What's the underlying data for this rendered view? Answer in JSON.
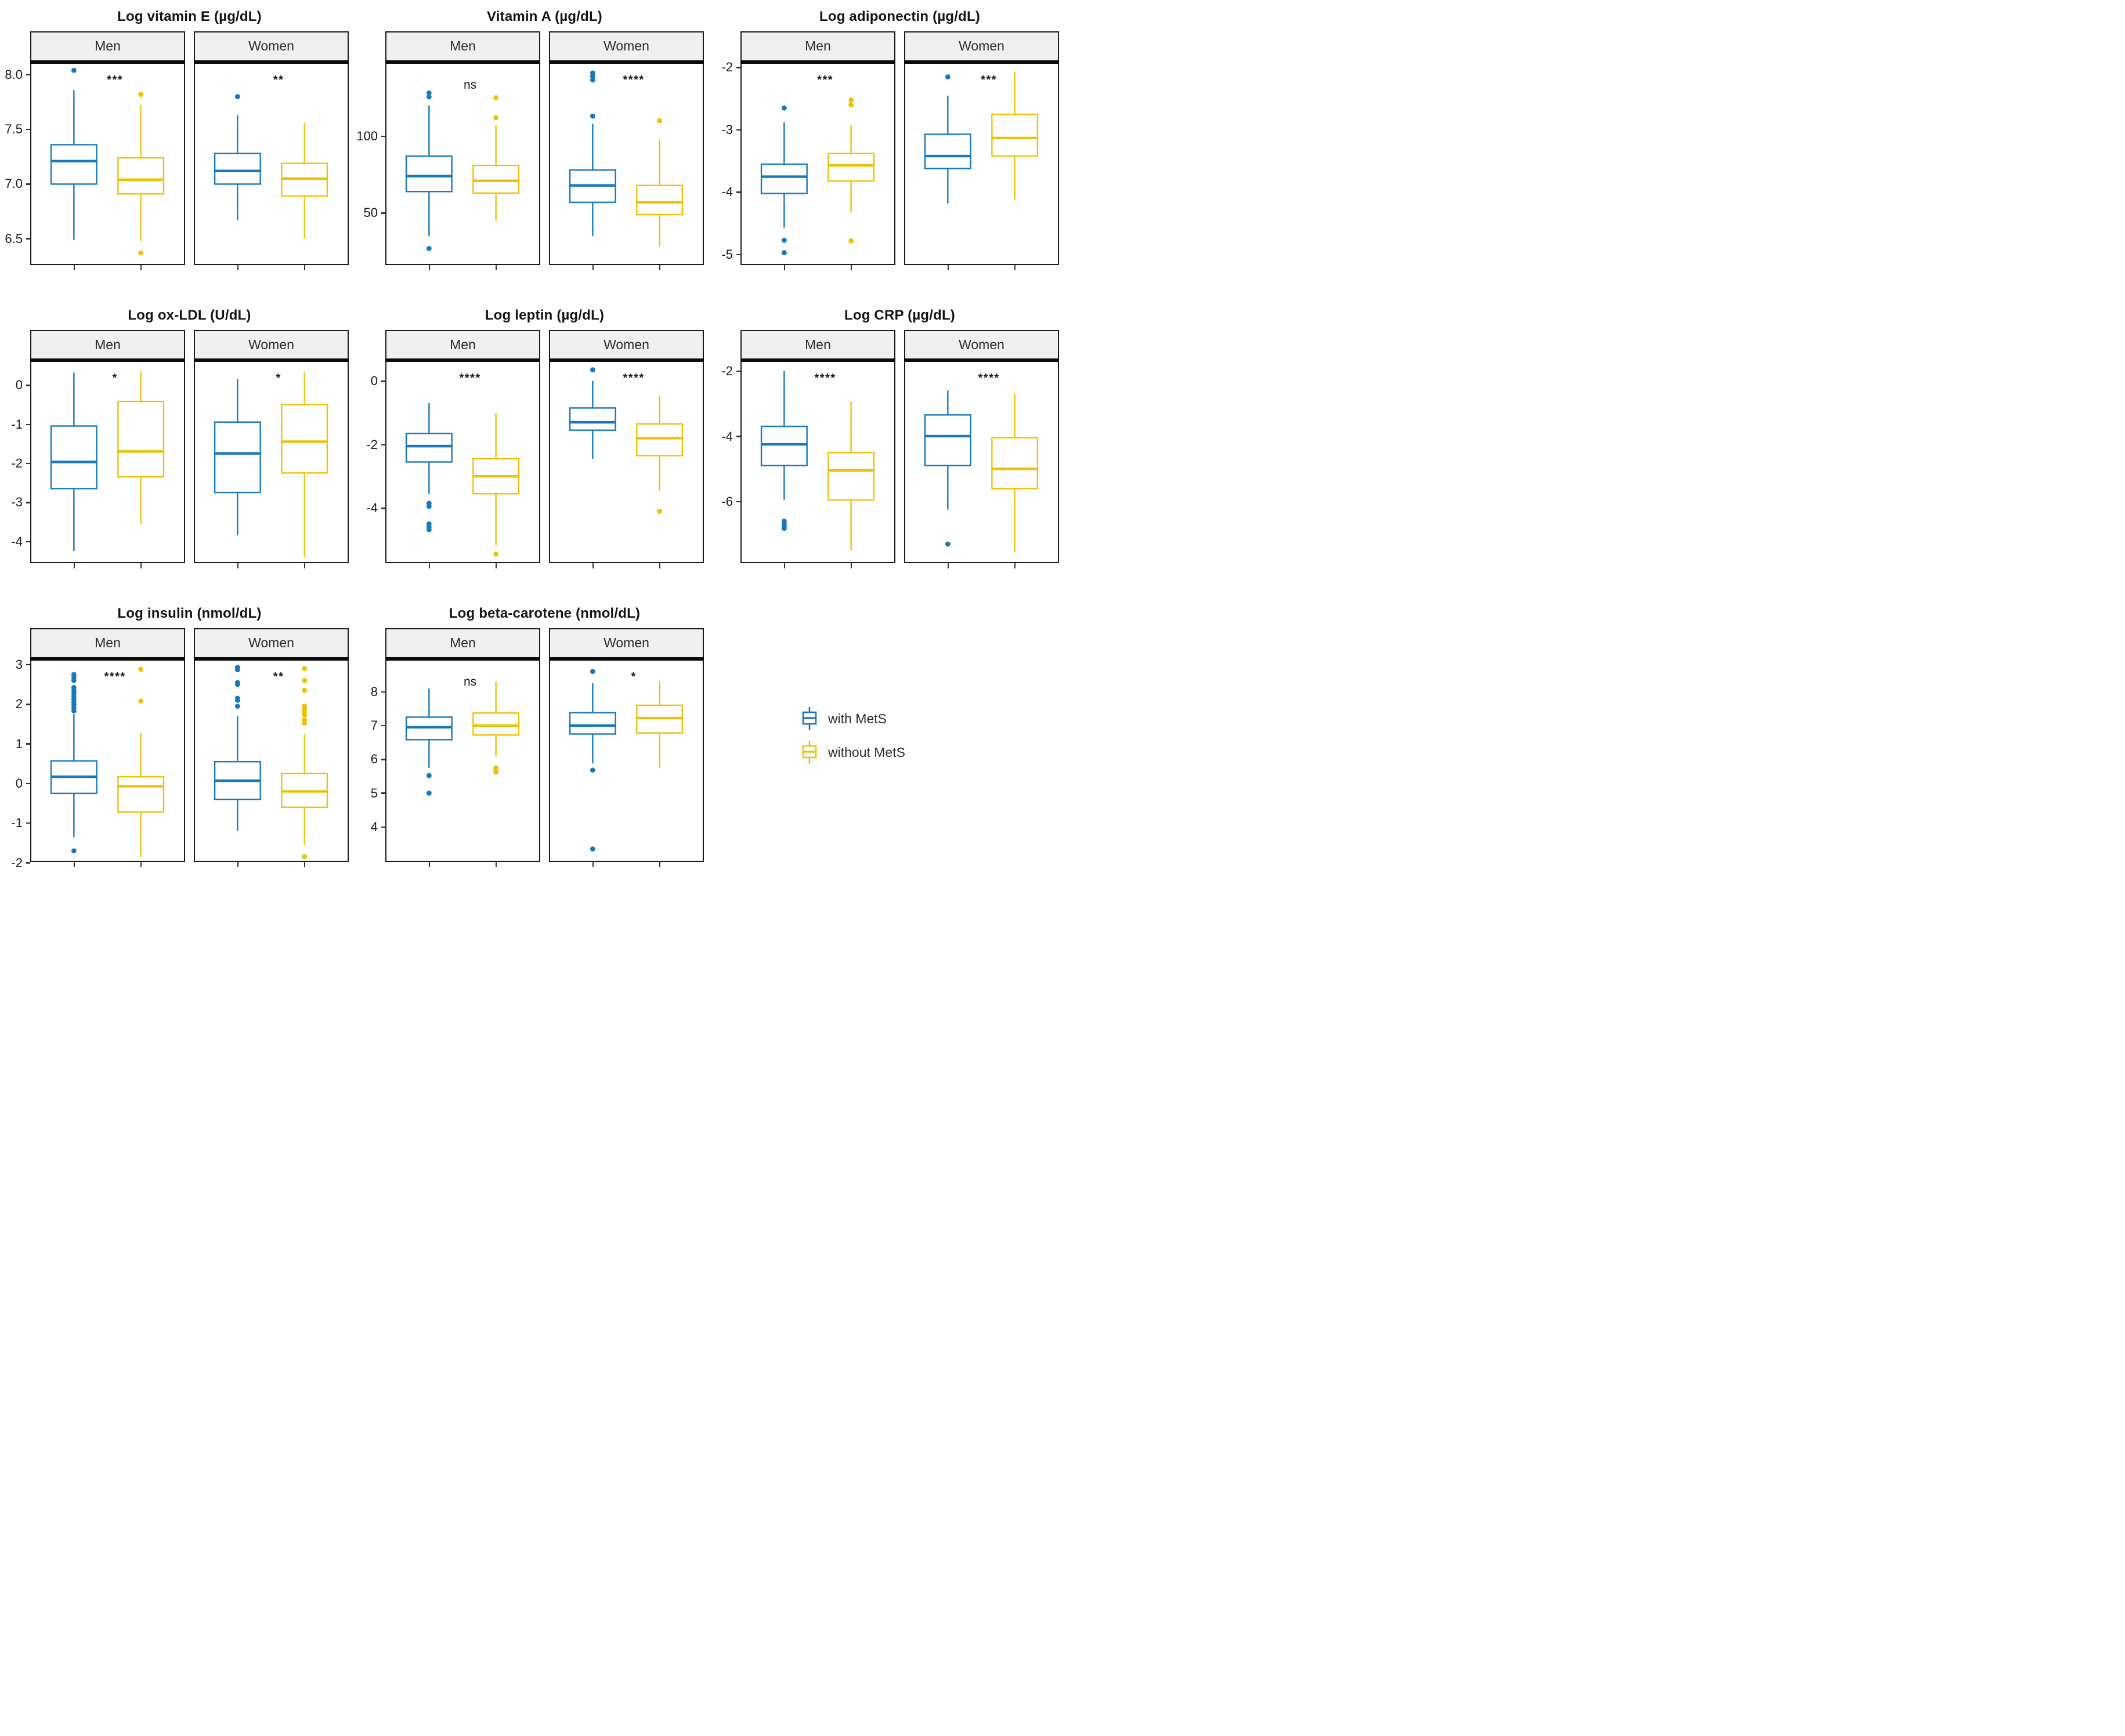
{
  "figure": {
    "background": "#ffffff",
    "facet_strip_bg": "#f0f0f0",
    "panel_border": "#1a1a1a",
    "axis_text_color": "#1a1a1a"
  },
  "colors": {
    "with_mets": "#1878BE",
    "without_mets": "#EFC106"
  },
  "legend": {
    "items": [
      {
        "label": "with MetS",
        "color": "#1878BE"
      },
      {
        "label": "without MetS",
        "color": "#EFC106"
      }
    ]
  },
  "chart_data": [
    {
      "type": "boxplot",
      "title": "Log vitamin E (µg/dL)",
      "ylabel": "",
      "ylim": [
        6.27,
        8.1
      ],
      "yticks": [
        6.5,
        7.0,
        7.5,
        8.0
      ],
      "ytick_labels": [
        "6.5",
        "7.0",
        "7.5",
        "8.0"
      ],
      "facets": [
        {
          "label": "Men",
          "significance": "***",
          "boxes": [
            {
              "series": "with MetS",
              "low": 6.49,
              "q1": 7.0,
              "median": 7.21,
              "q3": 7.36,
              "high": 7.86,
              "outliers": [
                8.04
              ]
            },
            {
              "series": "without MetS",
              "low": 6.48,
              "q1": 6.91,
              "median": 7.04,
              "q3": 7.24,
              "high": 7.72,
              "outliers": [
                7.82,
                6.37
              ]
            }
          ]
        },
        {
          "label": "Women",
          "significance": "**",
          "boxes": [
            {
              "series": "with MetS",
              "low": 6.67,
              "q1": 7.0,
              "median": 7.12,
              "q3": 7.28,
              "high": 7.63,
              "outliers": [
                7.8
              ]
            },
            {
              "series": "without MetS",
              "low": 6.5,
              "q1": 6.89,
              "median": 7.05,
              "q3": 7.19,
              "high": 7.56,
              "outliers": []
            }
          ]
        }
      ]
    },
    {
      "type": "boxplot",
      "title": "Vitamin A (µg/dL)",
      "ylabel": "",
      "ylim": [
        17,
        147
      ],
      "yticks": [
        50,
        100
      ],
      "ytick_labels": [
        "50",
        "100"
      ],
      "facets": [
        {
          "label": "Men",
          "significance": "ns",
          "boxes": [
            {
              "series": "with MetS",
              "low": 35,
              "q1": 64,
              "median": 74,
              "q3": 87,
              "high": 120,
              "outliers": [
                128,
                125.5,
                27
              ]
            },
            {
              "series": "without MetS",
              "low": 45,
              "q1": 63,
              "median": 71,
              "q3": 81,
              "high": 107,
              "outliers": [
                125,
                112
              ]
            }
          ]
        },
        {
          "label": "Women",
          "significance": "****",
          "boxes": [
            {
              "series": "with MetS",
              "low": 35,
              "q1": 57,
              "median": 68,
              "q3": 78,
              "high": 108,
              "outliers": [
                141,
                139,
                136.5,
                113
              ]
            },
            {
              "series": "without MetS",
              "low": 28,
              "q1": 49,
              "median": 57,
              "q3": 68,
              "high": 98,
              "outliers": [
                110
              ]
            }
          ]
        }
      ]
    },
    {
      "type": "boxplot",
      "title": "Log adiponectin (µg/dL)",
      "ylabel": "",
      "ylim": [
        -5.15,
        -1.94
      ],
      "yticks": [
        -5,
        -4,
        -3,
        -2
      ],
      "ytick_labels": [
        "-5",
        "-4",
        "-3",
        "-2"
      ],
      "facets": [
        {
          "label": "Men",
          "significance": "***",
          "boxes": [
            {
              "series": "with MetS",
              "low": -4.57,
              "q1": -4.02,
              "median": -3.75,
              "q3": -3.55,
              "high": -2.88,
              "outliers": [
                -2.65,
                -4.77,
                -4.97
              ]
            },
            {
              "series": "without MetS",
              "low": -4.33,
              "q1": -3.82,
              "median": -3.57,
              "q3": -3.38,
              "high": -2.92,
              "outliers": [
                -2.52,
                -2.6,
                -4.78
              ]
            }
          ]
        },
        {
          "label": "Women",
          "significance": "***",
          "boxes": [
            {
              "series": "with MetS",
              "low": -4.18,
              "q1": -3.62,
              "median": -3.42,
              "q3": -3.07,
              "high": -2.45,
              "outliers": [
                -2.15
              ]
            },
            {
              "series": "without MetS",
              "low": -4.12,
              "q1": -3.42,
              "median": -3.13,
              "q3": -2.75,
              "high": -2.07,
              "outliers": []
            }
          ]
        }
      ]
    },
    {
      "type": "boxplot",
      "title": "Log ox-LDL (U/dL)",
      "ylabel": "",
      "ylim": [
        -4.53,
        0.59
      ],
      "yticks": [
        -4,
        -3,
        -2,
        -1,
        0
      ],
      "ytick_labels": [
        "-4",
        "-3",
        "-2",
        "-1",
        "0"
      ],
      "facets": [
        {
          "label": "Men",
          "significance": "*",
          "boxes": [
            {
              "series": "with MetS",
              "low": -4.25,
              "q1": -2.65,
              "median": -1.97,
              "q3": -1.05,
              "high": 0.32,
              "outliers": []
            },
            {
              "series": "without MetS",
              "low": -3.55,
              "q1": -2.35,
              "median": -1.7,
              "q3": -0.42,
              "high": 0.35,
              "outliers": []
            }
          ]
        },
        {
          "label": "Women",
          "significance": "*",
          "boxes": [
            {
              "series": "with MetS",
              "low": -3.85,
              "q1": -2.75,
              "median": -1.75,
              "q3": -0.95,
              "high": 0.15,
              "outliers": []
            },
            {
              "series": "without MetS",
              "low": -4.4,
              "q1": -2.25,
              "median": -1.45,
              "q3": -0.5,
              "high": 0.32,
              "outliers": []
            }
          ]
        }
      ]
    },
    {
      "type": "boxplot",
      "title": "Log leptin (µg/dL)",
      "ylabel": "",
      "ylim": [
        -5.7,
        0.6
      ],
      "yticks": [
        -4,
        -2,
        0
      ],
      "ytick_labels": [
        "-4",
        "-2",
        "0"
      ],
      "facets": [
        {
          "label": "Men",
          "significance": "****",
          "boxes": [
            {
              "series": "with MetS",
              "low": -3.55,
              "q1": -2.55,
              "median": -2.05,
              "q3": -1.65,
              "high": -0.7,
              "outliers": [
                -3.85,
                -3.95,
                -4.5,
                -4.6,
                -4.68
              ]
            },
            {
              "series": "without MetS",
              "low": -5.18,
              "q1": -3.55,
              "median": -3.0,
              "q3": -2.45,
              "high": -1.0,
              "outliers": [
                -5.45
              ]
            }
          ]
        },
        {
          "label": "Women",
          "significance": "****",
          "boxes": [
            {
              "series": "with MetS",
              "low": -2.45,
              "q1": -1.55,
              "median": -1.3,
              "q3": -0.85,
              "high": 0.0,
              "outliers": [
                0.35
              ]
            },
            {
              "series": "without MetS",
              "low": -3.45,
              "q1": -2.35,
              "median": -1.8,
              "q3": -1.35,
              "high": -0.45,
              "outliers": [
                -4.1
              ]
            }
          ]
        }
      ]
    },
    {
      "type": "boxplot",
      "title": "Log CRP (µg/dL)",
      "ylabel": "",
      "ylim": [
        -7.85,
        -1.73
      ],
      "yticks": [
        -6,
        -4,
        -2
      ],
      "ytick_labels": [
        "-6",
        "-4",
        "-2"
      ],
      "facets": [
        {
          "label": "Men",
          "significance": "****",
          "boxes": [
            {
              "series": "with MetS",
              "low": -5.95,
              "q1": -4.9,
              "median": -4.25,
              "q3": -3.7,
              "high": -2.0,
              "outliers": [
                -6.6,
                -6.67,
                -6.74,
                -6.82
              ]
            },
            {
              "series": "without MetS",
              "low": -7.5,
              "q1": -5.95,
              "median": -5.05,
              "q3": -4.5,
              "high": -2.95,
              "outliers": []
            }
          ]
        },
        {
          "label": "Women",
          "significance": "****",
          "boxes": [
            {
              "series": "with MetS",
              "low": -6.25,
              "q1": -4.9,
              "median": -4.0,
              "q3": -3.35,
              "high": -2.6,
              "outliers": [
                -7.3
              ]
            },
            {
              "series": "without MetS",
              "low": -7.55,
              "q1": -5.6,
              "median": -5.0,
              "q3": -4.05,
              "high": -2.7,
              "outliers": []
            }
          ]
        }
      ]
    },
    {
      "type": "boxplot",
      "title": "Log insulin (nmol/dL)",
      "ylabel": "",
      "ylim": [
        -1.95,
        3.1
      ],
      "yticks": [
        -2,
        -1,
        0,
        1,
        2,
        3
      ],
      "ytick_labels": [
        "-2",
        "-1",
        "0",
        "1",
        "2",
        "3"
      ],
      "facets": [
        {
          "label": "Men",
          "significance": "****",
          "boxes": [
            {
              "series": "with MetS",
              "low": -1.35,
              "q1": -0.25,
              "median": 0.17,
              "q3": 0.57,
              "high": 1.75,
              "outliers": [
                2.75,
                2.68,
                2.6,
                2.42,
                2.35,
                2.28,
                2.2,
                2.12,
                2.05,
                1.98,
                1.9,
                1.83,
                -1.7
              ]
            },
            {
              "series": "without MetS",
              "low": -1.85,
              "q1": -0.72,
              "median": -0.07,
              "q3": 0.17,
              "high": 1.27,
              "outliers": [
                2.88,
                2.08
              ]
            }
          ]
        },
        {
          "label": "Women",
          "significance": "**",
          "boxes": [
            {
              "series": "with MetS",
              "low": -1.2,
              "q1": -0.4,
              "median": 0.07,
              "q3": 0.55,
              "high": 1.7,
              "outliers": [
                2.93,
                2.87,
                2.55,
                2.5,
                2.15,
                2.1,
                1.95
              ]
            },
            {
              "series": "without MetS",
              "low": -1.55,
              "q1": -0.6,
              "median": -0.2,
              "q3": 0.25,
              "high": 1.25,
              "outliers": [
                2.9,
                2.6,
                2.35,
                1.95,
                1.88,
                1.8,
                1.73,
                1.6,
                1.52,
                -1.85
              ]
            }
          ]
        }
      ]
    },
    {
      "type": "boxplot",
      "title": "Log beta-carotene (nmol/dL)",
      "ylabel": "",
      "ylim": [
        3.0,
        8.92
      ],
      "yticks": [
        4,
        5,
        6,
        7,
        8
      ],
      "ytick_labels": [
        "4",
        "5",
        "6",
        "7",
        "8"
      ],
      "facets": [
        {
          "label": "Men",
          "significance": "ns",
          "boxes": [
            {
              "series": "with MetS",
              "low": 5.75,
              "q1": 6.58,
              "median": 6.95,
              "q3": 7.25,
              "high": 8.1,
              "outliers": [
                5.52,
                5.0
              ]
            },
            {
              "series": "without MetS",
              "low": 6.08,
              "q1": 6.72,
              "median": 7.0,
              "q3": 7.37,
              "high": 8.3,
              "outliers": [
                5.75,
                5.68,
                5.62
              ]
            }
          ]
        },
        {
          "label": "Women",
          "significance": "*",
          "boxes": [
            {
              "series": "with MetS",
              "low": 5.88,
              "q1": 6.75,
              "median": 7.0,
              "q3": 7.38,
              "high": 8.25,
              "outliers": [
                8.6,
                5.68,
                3.35
              ]
            },
            {
              "series": "without MetS",
              "low": 5.75,
              "q1": 6.78,
              "median": 7.22,
              "q3": 7.6,
              "high": 8.32,
              "outliers": []
            }
          ]
        }
      ]
    }
  ]
}
